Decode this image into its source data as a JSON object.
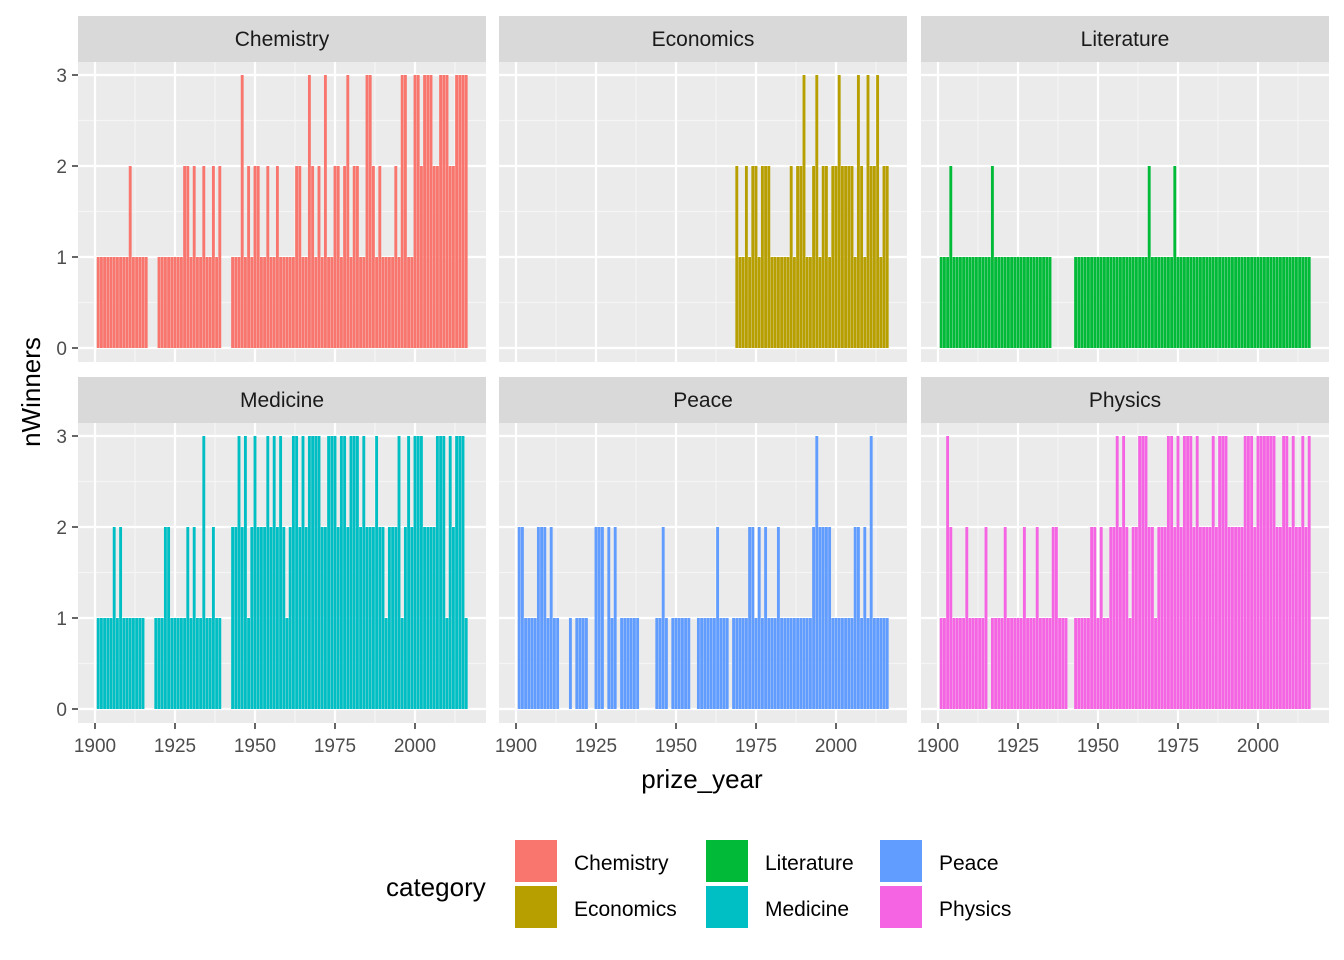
{
  "chart_data": {
    "type": "bar",
    "layout": "facet_wrap",
    "facet_columns": 3,
    "xlabel": "prize_year",
    "ylabel": "nWinners",
    "xlim": [
      1898,
      2020
    ],
    "ylim": [
      0,
      3
    ],
    "x_ticks": [
      1900,
      1925,
      1950,
      1975,
      2000
    ],
    "y_ticks": [
      0,
      1,
      2,
      3
    ],
    "grid": true,
    "legend": {
      "title": "category",
      "position": "bottom",
      "entries": [
        "Chemistry",
        "Economics",
        "Literature",
        "Medicine",
        "Peace",
        "Physics"
      ]
    },
    "colors": {
      "Chemistry": "#F8766D",
      "Economics": "#B79F00",
      "Literature": "#00BA38",
      "Medicine": "#00BFC4",
      "Peace": "#619CFF",
      "Physics": "#F564E3"
    },
    "series": [
      {
        "name": "Chemistry",
        "ranges": [
          [
            1901,
            1916,
            1
          ],
          [
            1920,
            1939,
            1
          ],
          [
            1943,
            2016,
            1
          ]
        ],
        "overrides": [
          [
            1911,
            2
          ],
          [
            1928,
            2
          ],
          [
            1929,
            2
          ],
          [
            1931,
            2
          ],
          [
            1934,
            2
          ],
          [
            1937,
            2
          ],
          [
            1939,
            2
          ],
          [
            1946,
            3
          ],
          [
            1948,
            2
          ],
          [
            1950,
            2
          ],
          [
            1951,
            2
          ],
          [
            1954,
            2
          ],
          [
            1957,
            2
          ],
          [
            1963,
            2
          ],
          [
            1964,
            2
          ],
          [
            1967,
            3
          ],
          [
            1968,
            2
          ],
          [
            1970,
            2
          ],
          [
            1972,
            3
          ],
          [
            1975,
            2
          ],
          [
            1976,
            2
          ],
          [
            1978,
            2
          ],
          [
            1979,
            3
          ],
          [
            1981,
            2
          ],
          [
            1982,
            2
          ],
          [
            1985,
            3
          ],
          [
            1986,
            3
          ],
          [
            1987,
            2
          ],
          [
            1989,
            2
          ],
          [
            1994,
            2
          ],
          [
            1996,
            3
          ],
          [
            1997,
            3
          ],
          [
            2000,
            3
          ],
          [
            2001,
            3
          ],
          [
            2002,
            2
          ],
          [
            2003,
            3
          ],
          [
            2004,
            3
          ],
          [
            2005,
            3
          ],
          [
            2006,
            2
          ],
          [
            2007,
            2
          ],
          [
            2008,
            3
          ],
          [
            2009,
            3
          ],
          [
            2010,
            3
          ],
          [
            2011,
            2
          ],
          [
            2012,
            2
          ],
          [
            2013,
            3
          ],
          [
            2014,
            3
          ],
          [
            2015,
            3
          ],
          [
            2016,
            3
          ]
        ]
      },
      {
        "name": "Economics",
        "ranges": [
          [
            1969,
            2016,
            1
          ]
        ],
        "overrides": [
          [
            1969,
            2
          ],
          [
            1972,
            2
          ],
          [
            1974,
            2
          ],
          [
            1975,
            2
          ],
          [
            1977,
            2
          ],
          [
            1978,
            2
          ],
          [
            1979,
            2
          ],
          [
            1986,
            2
          ],
          [
            1988,
            2
          ],
          [
            1989,
            2
          ],
          [
            1990,
            3
          ],
          [
            1993,
            2
          ],
          [
            1994,
            3
          ],
          [
            1996,
            2
          ],
          [
            1997,
            2
          ],
          [
            1999,
            2
          ],
          [
            2000,
            2
          ],
          [
            2001,
            3
          ],
          [
            2002,
            2
          ],
          [
            2003,
            2
          ],
          [
            2004,
            2
          ],
          [
            2005,
            2
          ],
          [
            2007,
            3
          ],
          [
            2008,
            2
          ],
          [
            2010,
            3
          ],
          [
            2011,
            2
          ],
          [
            2012,
            2
          ],
          [
            2013,
            3
          ],
          [
            2015,
            2
          ],
          [
            2016,
            2
          ]
        ]
      },
      {
        "name": "Literature",
        "ranges": [
          [
            1901,
            1914,
            1
          ],
          [
            1915,
            1918,
            1
          ],
          [
            1919,
            1935,
            1
          ],
          [
            1943,
            2016,
            1
          ]
        ],
        "overrides": [
          [
            1904,
            2
          ],
          [
            1917,
            2
          ],
          [
            1966,
            2
          ],
          [
            1974,
            2
          ]
        ]
      },
      {
        "name": "Medicine",
        "ranges": [
          [
            1901,
            1915,
            1
          ],
          [
            1919,
            1939,
            1
          ],
          [
            1943,
            2016,
            1
          ]
        ],
        "overrides": [
          [
            1906,
            2
          ],
          [
            1908,
            2
          ],
          [
            1922,
            2
          ],
          [
            1923,
            2
          ],
          [
            1929,
            2
          ],
          [
            1931,
            2
          ],
          [
            1934,
            3
          ],
          [
            1937,
            2
          ],
          [
            1943,
            2
          ],
          [
            1944,
            2
          ],
          [
            1945,
            3
          ],
          [
            1946,
            2
          ],
          [
            1947,
            3
          ],
          [
            1949,
            2
          ],
          [
            1950,
            3
          ],
          [
            1951,
            2
          ],
          [
            1952,
            2
          ],
          [
            1953,
            2
          ],
          [
            1954,
            3
          ],
          [
            1955,
            2
          ],
          [
            1956,
            3
          ],
          [
            1957,
            2
          ],
          [
            1958,
            3
          ],
          [
            1959,
            2
          ],
          [
            1961,
            2
          ],
          [
            1962,
            3
          ],
          [
            1963,
            3
          ],
          [
            1964,
            2
          ],
          [
            1965,
            3
          ],
          [
            1966,
            2
          ],
          [
            1967,
            3
          ],
          [
            1968,
            3
          ],
          [
            1969,
            3
          ],
          [
            1970,
            3
          ],
          [
            1971,
            2
          ],
          [
            1972,
            2
          ],
          [
            1973,
            3
          ],
          [
            1974,
            3
          ],
          [
            1975,
            3
          ],
          [
            1976,
            2
          ],
          [
            1977,
            3
          ],
          [
            1978,
            3
          ],
          [
            1979,
            2
          ],
          [
            1980,
            3
          ],
          [
            1981,
            3
          ],
          [
            1982,
            3
          ],
          [
            1983,
            2
          ],
          [
            1984,
            3
          ],
          [
            1985,
            2
          ],
          [
            1986,
            2
          ],
          [
            1987,
            2
          ],
          [
            1988,
            3
          ],
          [
            1989,
            2
          ],
          [
            1990,
            2
          ],
          [
            1992,
            2
          ],
          [
            1993,
            2
          ],
          [
            1994,
            2
          ],
          [
            1995,
            3
          ],
          [
            1997,
            2
          ],
          [
            1998,
            3
          ],
          [
            1999,
            2
          ],
          [
            2000,
            3
          ],
          [
            2001,
            3
          ],
          [
            2002,
            3
          ],
          [
            2003,
            2
          ],
          [
            2004,
            2
          ],
          [
            2005,
            2
          ],
          [
            2006,
            2
          ],
          [
            2007,
            3
          ],
          [
            2008,
            3
          ],
          [
            2009,
            3
          ],
          [
            2011,
            3
          ],
          [
            2012,
            2
          ],
          [
            2013,
            3
          ],
          [
            2014,
            3
          ],
          [
            2015,
            3
          ]
        ]
      },
      {
        "name": "Peace",
        "ranges": [
          [
            1901,
            1913,
            1
          ],
          [
            1917,
            1917,
            1
          ],
          [
            1919,
            1922,
            1
          ],
          [
            1925,
            1927,
            1
          ],
          [
            1929,
            1931,
            1
          ],
          [
            1933,
            1938,
            1
          ],
          [
            1944,
            1947,
            1
          ],
          [
            1949,
            1954,
            1
          ],
          [
            1957,
            1966,
            1
          ],
          [
            1968,
            1976,
            1
          ],
          [
            1977,
            2016,
            1
          ]
        ],
        "overrides": [
          [
            1901,
            2
          ],
          [
            1902,
            2
          ],
          [
            1907,
            2
          ],
          [
            1908,
            2
          ],
          [
            1909,
            2
          ],
          [
            1911,
            2
          ],
          [
            1925,
            2
          ],
          [
            1926,
            2
          ],
          [
            1927,
            2
          ],
          [
            1929,
            2
          ],
          [
            1931,
            2
          ],
          [
            1946,
            2
          ],
          [
            1963,
            2
          ],
          [
            1973,
            2
          ],
          [
            1974,
            2
          ],
          [
            1976,
            2
          ],
          [
            1978,
            2
          ],
          [
            1982,
            2
          ],
          [
            1994,
            3
          ],
          [
            1993,
            2
          ],
          [
            1995,
            2
          ],
          [
            1996,
            2
          ],
          [
            1997,
            2
          ],
          [
            1998,
            2
          ],
          [
            2006,
            2
          ],
          [
            2007,
            2
          ],
          [
            2009,
            2
          ],
          [
            2011,
            3
          ]
        ]
      },
      {
        "name": "Physics",
        "ranges": [
          [
            1901,
            1915,
            1
          ],
          [
            1917,
            1940,
            1
          ],
          [
            1943,
            2016,
            1
          ]
        ],
        "overrides": [
          [
            1903,
            3
          ],
          [
            1904,
            2
          ],
          [
            1909,
            2
          ],
          [
            1915,
            2
          ],
          [
            1921,
            2
          ],
          [
            1927,
            2
          ],
          [
            1931,
            2
          ],
          [
            1936,
            2
          ],
          [
            1937,
            2
          ],
          [
            1948,
            2
          ],
          [
            1949,
            2
          ],
          [
            1951,
            2
          ],
          [
            1954,
            2
          ],
          [
            1955,
            2
          ],
          [
            1956,
            3
          ],
          [
            1957,
            2
          ],
          [
            1958,
            3
          ],
          [
            1959,
            2
          ],
          [
            1961,
            2
          ],
          [
            1962,
            2
          ],
          [
            1963,
            3
          ],
          [
            1964,
            3
          ],
          [
            1965,
            3
          ],
          [
            1966,
            2
          ],
          [
            1967,
            2
          ],
          [
            1969,
            2
          ],
          [
            1970,
            2
          ],
          [
            1971,
            2
          ],
          [
            1972,
            3
          ],
          [
            1973,
            3
          ],
          [
            1974,
            2
          ],
          [
            1975,
            3
          ],
          [
            1976,
            2
          ],
          [
            1977,
            3
          ],
          [
            1978,
            3
          ],
          [
            1979,
            3
          ],
          [
            1980,
            2
          ],
          [
            1981,
            3
          ],
          [
            1982,
            2
          ],
          [
            1983,
            2
          ],
          [
            1984,
            2
          ],
          [
            1985,
            2
          ],
          [
            1986,
            3
          ],
          [
            1987,
            2
          ],
          [
            1988,
            3
          ],
          [
            1989,
            3
          ],
          [
            1990,
            3
          ],
          [
            1991,
            2
          ],
          [
            1992,
            2
          ],
          [
            1993,
            2
          ],
          [
            1994,
            2
          ],
          [
            1995,
            2
          ],
          [
            1996,
            3
          ],
          [
            1997,
            3
          ],
          [
            1998,
            3
          ],
          [
            1999,
            2
          ],
          [
            2000,
            3
          ],
          [
            2001,
            3
          ],
          [
            2002,
            3
          ],
          [
            2003,
            3
          ],
          [
            2004,
            3
          ],
          [
            2005,
            3
          ],
          [
            2006,
            2
          ],
          [
            2007,
            2
          ],
          [
            2008,
            3
          ],
          [
            2009,
            3
          ],
          [
            2010,
            2
          ],
          [
            2011,
            3
          ],
          [
            2012,
            2
          ],
          [
            2013,
            2
          ],
          [
            2014,
            3
          ],
          [
            2015,
            2
          ],
          [
            2016,
            3
          ]
        ]
      }
    ]
  }
}
